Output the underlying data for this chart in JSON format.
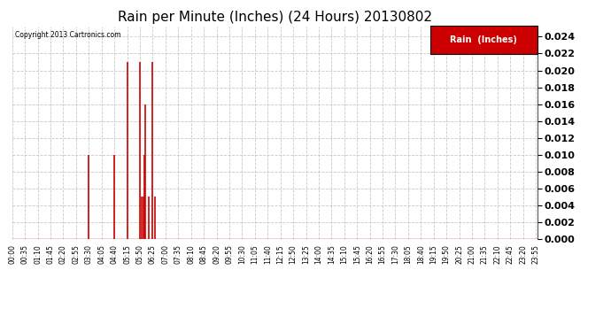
{
  "title": "Rain per Minute (Inches) (24 Hours) 20130802",
  "copyright_text": "Copyright 2013 Cartronics.com",
  "legend_label": "Rain  (Inches)",
  "legend_bg": "#cc0000",
  "legend_text_color": "#ffffff",
  "ylim": [
    0,
    0.0252
  ],
  "yticks": [
    0.0,
    0.002,
    0.004,
    0.006,
    0.008,
    0.01,
    0.012,
    0.014,
    0.016,
    0.018,
    0.02,
    0.022,
    0.024
  ],
  "bg_color": "#ffffff",
  "plot_bg": "#ffffff",
  "grid_color": "#bbbbbb",
  "bar_color": "#cc0000",
  "line_color": "#cc0000",
  "title_fontsize": 11,
  "total_minutes": 1440,
  "rain_data": {
    "210": 0.01,
    "280": 0.01,
    "315": 0.021,
    "350": 0.021,
    "355": 0.005,
    "360": 0.005,
    "362": 0.01,
    "365": 0.016,
    "375": 0.005,
    "385": 0.021,
    "390": 0.005
  },
  "x_tick_labels": [
    "00:00",
    "00:35",
    "01:10",
    "01:45",
    "02:20",
    "02:55",
    "03:30",
    "04:05",
    "04:40",
    "05:15",
    "05:50",
    "06:25",
    "07:00",
    "07:35",
    "08:10",
    "08:45",
    "09:20",
    "09:55",
    "10:30",
    "11:05",
    "11:40",
    "12:15",
    "12:50",
    "13:25",
    "14:00",
    "14:35",
    "15:10",
    "15:45",
    "16:20",
    "16:55",
    "17:30",
    "18:05",
    "18:40",
    "19:15",
    "19:50",
    "20:25",
    "21:00",
    "21:35",
    "22:10",
    "22:45",
    "23:20",
    "23:55"
  ]
}
